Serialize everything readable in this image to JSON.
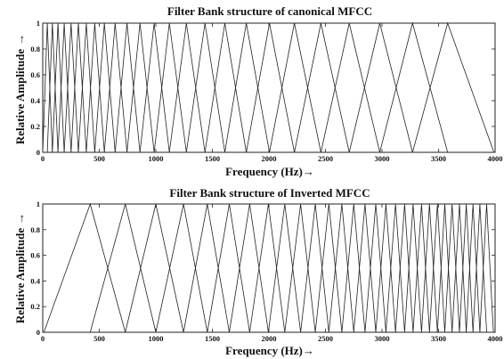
{
  "chart_data": [
    {
      "type": "line",
      "title": "Filter Bank structure of canonical MFCC",
      "xlabel": "Frequency (Hz)",
      "xlabel_arrow": "→",
      "ylabel": "Relative Amplitude",
      "ylabel_arrow": "→",
      "xlim": [
        0,
        4000
      ],
      "ylim": [
        0,
        1
      ],
      "xticks": [
        0,
        500,
        1000,
        1500,
        2000,
        2500,
        3000,
        3500,
        4000
      ],
      "yticks": [
        0,
        0.2,
        0.4,
        0.6,
        0.8,
        1
      ],
      "ytick_labels": [
        "0",
        "0.2",
        "0.4",
        "0.6",
        "0.8",
        "1"
      ],
      "grid": false,
      "filter_points": [
        0,
        40,
        85,
        135,
        190,
        250,
        315,
        385,
        460,
        545,
        640,
        745,
        860,
        985,
        1120,
        1270,
        1435,
        1610,
        1800,
        2005,
        2225,
        2460,
        2710,
        2980,
        3270,
        3580,
        3990
      ],
      "series": [
        {
          "shape": "triangular filters",
          "peak": 1
        }
      ]
    },
    {
      "type": "line",
      "title": "Filter Bank structure of Inverted MFCC",
      "xlabel": "Frequency (Hz)",
      "xlabel_arrow": "→",
      "ylabel": "Relative Amplitude",
      "ylabel_arrow": "→",
      "xlim": [
        0,
        4000
      ],
      "ylim": [
        0,
        1
      ],
      "xticks": [
        0,
        500,
        1000,
        1500,
        2000,
        2500,
        3000,
        3500,
        4000
      ],
      "yticks": [
        0,
        0.2,
        0.4,
        0.6,
        0.8,
        1
      ],
      "ytick_labels": [
        "0",
        "0.2",
        "0.4",
        "0.6",
        "0.8",
        "1"
      ],
      "grid": false,
      "filter_points": [
        10,
        420,
        730,
        1000,
        1245,
        1455,
        1650,
        1830,
        1995,
        2140,
        2280,
        2410,
        2530,
        2645,
        2750,
        2850,
        2945,
        3035,
        3120,
        3200,
        3275,
        3350,
        3420,
        3490,
        3555,
        3620,
        3685,
        3745,
        3805,
        3865,
        3925,
        3985
      ],
      "series": [
        {
          "shape": "triangular filters",
          "peak": 1
        }
      ]
    }
  ]
}
